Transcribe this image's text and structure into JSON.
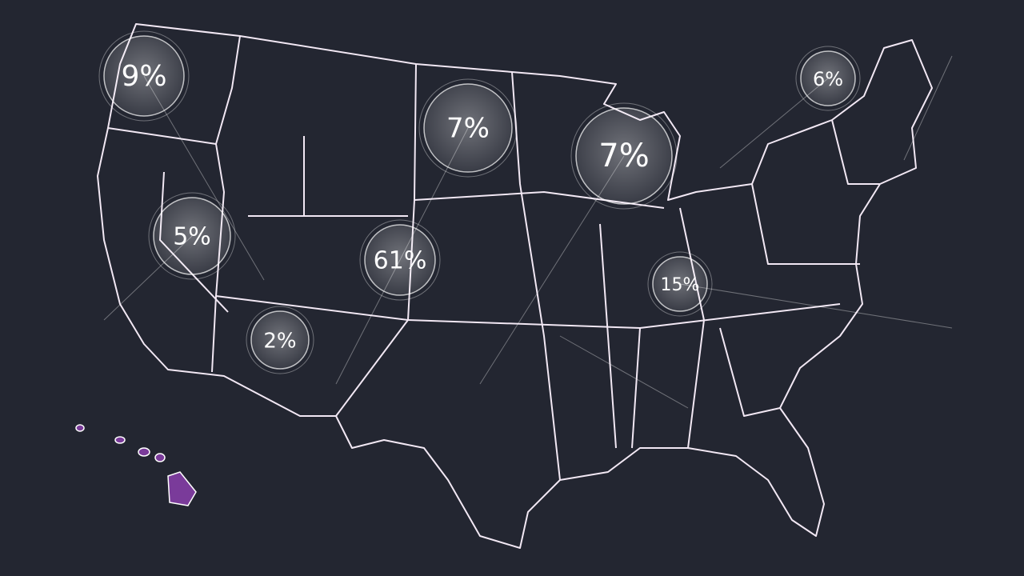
{
  "map": {
    "labels": [
      "9%",
      "7%",
      "7%",
      "6%",
      "5%",
      "61%",
      "2%",
      "15%"
    ]
  }
}
